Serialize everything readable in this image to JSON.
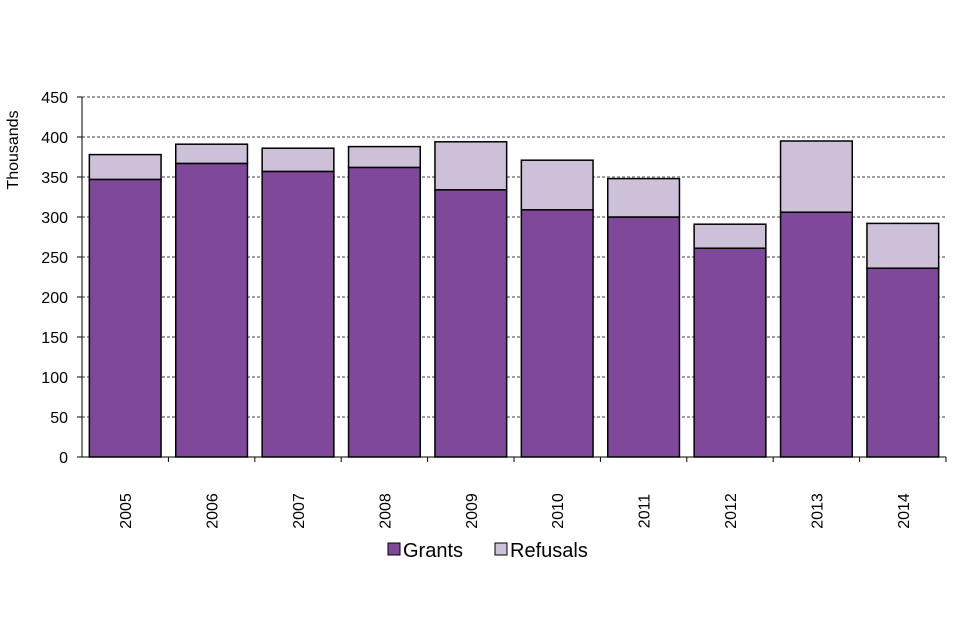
{
  "chart_data": {
    "type": "bar",
    "stacked": true,
    "categories": [
      "2005",
      "2006",
      "2007",
      "2008",
      "2009",
      "2010",
      "2011",
      "2012",
      "2013",
      "2014"
    ],
    "series": [
      {
        "name": "Grants",
        "color": "#7f4899",
        "values": [
          347,
          367,
          357,
          362,
          334,
          309,
          300,
          261,
          306,
          236
        ]
      },
      {
        "name": "Refusals",
        "color": "#ccc1d9",
        "values": [
          31,
          24,
          29,
          26,
          60,
          62,
          48,
          30,
          89,
          56
        ]
      }
    ],
    "ylabel": "Thousands",
    "ylim": [
      0,
      450
    ],
    "yticks": [
      0,
      50,
      100,
      150,
      200,
      250,
      300,
      350,
      400,
      450
    ],
    "grid": true,
    "legend": "bottom"
  }
}
